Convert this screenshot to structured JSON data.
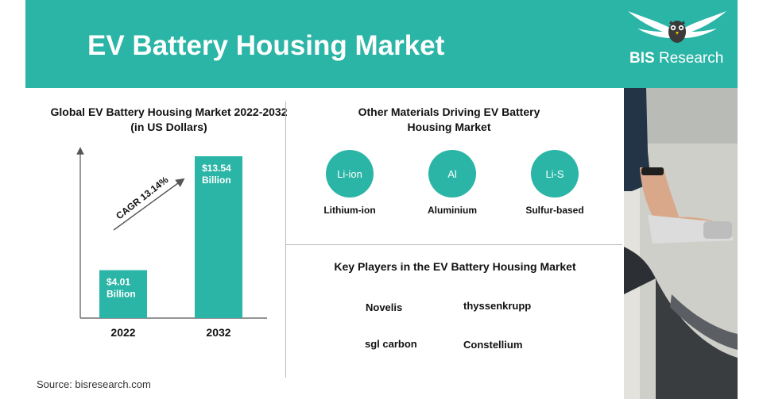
{
  "header": {
    "title": "EV Battery Housing Market"
  },
  "logo": {
    "brand_bold": "BIS",
    "brand_rest": " Research",
    "icon": "owl-icon"
  },
  "chart_data": {
    "type": "bar",
    "title": "Global EV Battery Housing Market 2022-2032 (in US Dollars)",
    "categories": [
      "2022",
      "2032"
    ],
    "values": [
      4.01,
      13.54
    ],
    "data_labels": [
      "$4.01\nBillion",
      "$13.54\nBillion"
    ],
    "annotation": "CAGR 13.14%",
    "ylim": [
      0,
      15
    ],
    "grid": false,
    "color": "#2bb5a6"
  },
  "materials": {
    "title": "Other Materials Driving EV Battery Housing Market",
    "items": [
      {
        "symbol": "Li-ion",
        "label": "Lithium-ion"
      },
      {
        "symbol": "Al",
        "label": "Aluminium"
      },
      {
        "symbol": "Li-S",
        "label": "Sulfur-based"
      }
    ]
  },
  "players": {
    "title": "Key Players in the EV Battery Housing Market",
    "items": [
      "Novelis",
      "thyssenkrupp",
      "sgl carbon",
      "Constellium"
    ]
  },
  "source": "Source: bisresearch.com",
  "colors": {
    "accent": "#2bb5a6"
  }
}
